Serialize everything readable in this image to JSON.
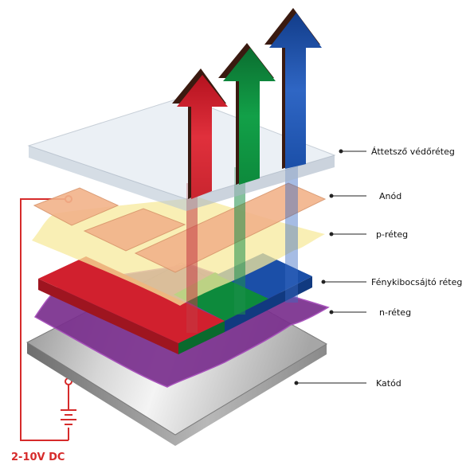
{
  "labels": {
    "protective_layer": "Áttetsző védőréteg",
    "anode": "Anód",
    "p_layer": "p-réteg",
    "emissive_layer": "Fénykibocsájtó réteg",
    "n_layer": "n-réteg",
    "cathode": "Katód"
  },
  "voltage": "2-10V DC",
  "colors": {
    "red": "#d1202e",
    "green": "#0d8a3c",
    "blue": "#1b4fa8",
    "purple": "#7a2f8e",
    "anode": "#f2b38a",
    "p_layer": "#f7ea9c",
    "wire": "#d62b2b"
  }
}
